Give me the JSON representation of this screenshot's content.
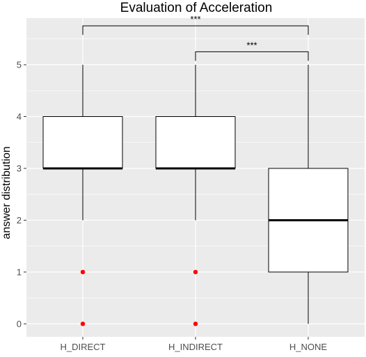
{
  "chart_data": {
    "type": "boxplot",
    "title": "Evaluation of Acceleration",
    "xlabel": "",
    "ylabel": "answer distribution",
    "ylim": [
      -0.25,
      5.9
    ],
    "y_ticks": [
      0,
      1,
      2,
      3,
      4,
      5
    ],
    "y_tick_labels": [
      "0",
      "1",
      "2",
      "3",
      "4",
      "5"
    ],
    "grid": true,
    "legend": "none",
    "categories": [
      "H_DIRECT",
      "H_INDIRECT",
      "H_NONE"
    ],
    "boxes": [
      {
        "category": "H_DIRECT",
        "whisker_low": 2,
        "q1": 3,
        "median": 3,
        "q3": 4,
        "whisker_high": 5,
        "outliers": [
          1,
          0
        ]
      },
      {
        "category": "H_INDIRECT",
        "whisker_low": 2,
        "q1": 3,
        "median": 3,
        "q3": 4,
        "whisker_high": 5,
        "outliers": [
          1,
          0
        ]
      },
      {
        "category": "H_NONE",
        "whisker_low": 0,
        "q1": 1,
        "median": 2,
        "q3": 3,
        "whisker_high": 5,
        "outliers": []
      }
    ],
    "significance": [
      {
        "from": "H_DIRECT",
        "to": "H_NONE",
        "label": "***",
        "y": 5.75
      },
      {
        "from": "H_INDIRECT",
        "to": "H_NONE",
        "label": "***",
        "y": 5.25
      }
    ],
    "colors": {
      "panel_background": "#ebebeb",
      "grid_major": "#ffffff",
      "box_fill": "#ffffff",
      "box_stroke": "#000000",
      "outlier": "#ff0000",
      "tick_text": "#4d4d4d"
    }
  }
}
